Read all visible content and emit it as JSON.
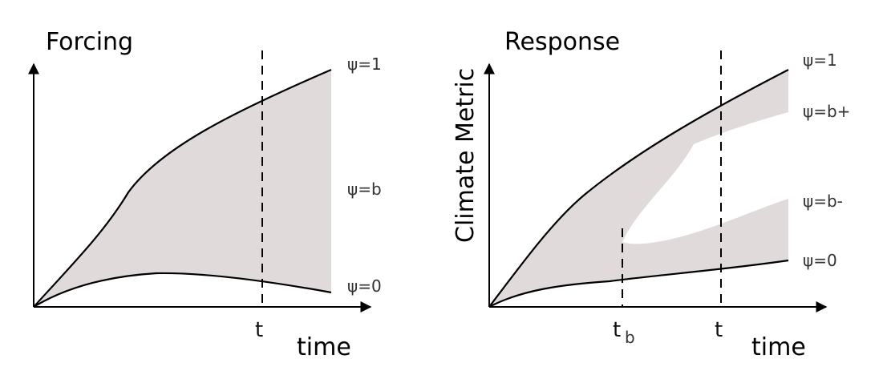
{
  "colors": {
    "band": "#e0dadb",
    "line": "#000000",
    "text": "#333333"
  },
  "left_panel": {
    "title": "Forcing",
    "x_axis_label": "time",
    "t_marker": "t",
    "labels": {
      "top": "ψ=1",
      "mid": "ψ=b",
      "bottom": "ψ=0"
    }
  },
  "right_panel": {
    "title": "Response",
    "y_axis_label": "Climate Metric",
    "x_axis_label": "time",
    "tb_marker": "t",
    "tb_subscript": "b",
    "t_marker": "t",
    "labels": {
      "top": "ψ=1",
      "upper": "ψ=b+",
      "lower": "ψ=b-",
      "bottom": "ψ=0"
    }
  }
}
